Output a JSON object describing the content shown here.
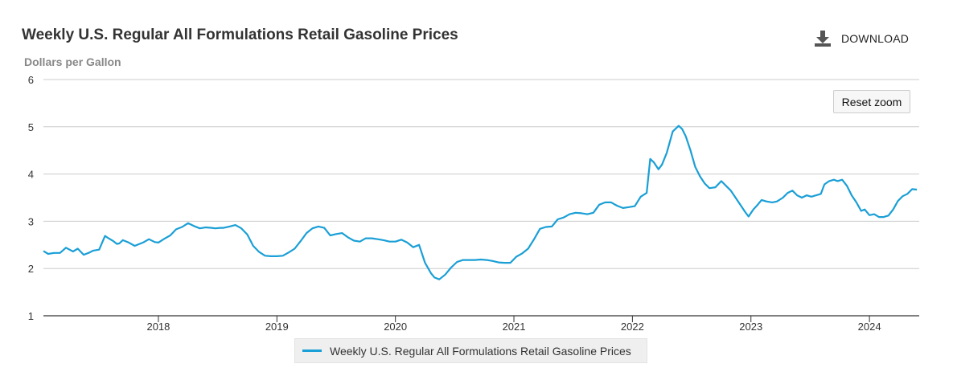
{
  "chart_data": {
    "type": "line",
    "title": "Weekly U.S. Regular All Formulations Retail Gasoline Prices",
    "ylabel": "Dollars per Gallon",
    "xlabel": "",
    "ylim": [
      1,
      6
    ],
    "yticks": [
      1,
      2,
      3,
      4,
      5,
      6
    ],
    "xlim": [
      2017.03,
      2024.42
    ],
    "xticks": [
      {
        "value": 2018,
        "label": "2018"
      },
      {
        "value": 2019,
        "label": "2019"
      },
      {
        "value": 2020,
        "label": "2020"
      },
      {
        "value": 2021,
        "label": "2021"
      },
      {
        "value": 2022,
        "label": "2022"
      },
      {
        "value": 2023,
        "label": "2023"
      },
      {
        "value": 2024,
        "label": "2024"
      }
    ],
    "grid": true,
    "legend_position": "bottom-center",
    "series": [
      {
        "name": "Weekly U.S. Regular All Formulations Retail Gasoline Prices",
        "color": "#1a9fd6",
        "x": [
          2017.03,
          2017.07,
          2017.12,
          2017.17,
          2017.22,
          2017.28,
          2017.32,
          2017.37,
          2017.42,
          2017.45,
          2017.5,
          2017.55,
          2017.58,
          2017.62,
          2017.65,
          2017.67,
          2017.7,
          2017.75,
          2017.8,
          2017.84,
          2017.87,
          2017.92,
          2017.97,
          2018.0,
          2018.05,
          2018.1,
          2018.15,
          2018.2,
          2018.25,
          2018.3,
          2018.35,
          2018.4,
          2018.45,
          2018.48,
          2018.52,
          2018.55,
          2018.6,
          2018.65,
          2018.7,
          2018.75,
          2018.8,
          2018.85,
          2018.9,
          2018.95,
          2019.0,
          2019.05,
          2019.1,
          2019.15,
          2019.2,
          2019.25,
          2019.3,
          2019.35,
          2019.4,
          2019.45,
          2019.5,
          2019.55,
          2019.6,
          2019.65,
          2019.7,
          2019.75,
          2019.8,
          2019.85,
          2019.9,
          2019.95,
          2020.0,
          2020.05,
          2020.1,
          2020.15,
          2020.2,
          2020.25,
          2020.3,
          2020.33,
          2020.37,
          2020.42,
          2020.47,
          2020.52,
          2020.57,
          2020.62,
          2020.67,
          2020.72,
          2020.77,
          2020.82,
          2020.87,
          2020.92,
          2020.97,
          2021.02,
          2021.07,
          2021.12,
          2021.17,
          2021.22,
          2021.27,
          2021.32,
          2021.37,
          2021.42,
          2021.47,
          2021.52,
          2021.57,
          2021.62,
          2021.67,
          2021.72,
          2021.77,
          2021.82,
          2021.87,
          2021.92,
          2021.97,
          2022.02,
          2022.07,
          2022.12,
          2022.15,
          2022.18,
          2022.22,
          2022.25,
          2022.29,
          2022.34,
          2022.39,
          2022.42,
          2022.45,
          2022.49,
          2022.53,
          2022.57,
          2022.61,
          2022.65,
          2022.7,
          2022.75,
          2022.79,
          2022.83,
          2022.87,
          2022.91,
          2022.95,
          2022.98,
          2023.02,
          2023.05,
          2023.09,
          2023.13,
          2023.18,
          2023.22,
          2023.27,
          2023.31,
          2023.35,
          2023.39,
          2023.43,
          2023.47,
          2023.51,
          2023.55,
          2023.59,
          2023.62,
          2023.66,
          2023.7,
          2023.73,
          2023.77,
          2023.81,
          2023.85,
          2023.89,
          2023.93,
          2023.96,
          2024.0,
          2024.04,
          2024.08,
          2024.12,
          2024.16,
          2024.2,
          2024.24,
          2024.28,
          2024.32,
          2024.36,
          2024.4
        ],
        "values": [
          2.37,
          2.31,
          2.33,
          2.33,
          2.44,
          2.36,
          2.42,
          2.29,
          2.34,
          2.38,
          2.4,
          2.69,
          2.64,
          2.58,
          2.52,
          2.53,
          2.6,
          2.55,
          2.48,
          2.52,
          2.55,
          2.62,
          2.56,
          2.55,
          2.63,
          2.7,
          2.83,
          2.88,
          2.96,
          2.9,
          2.85,
          2.87,
          2.86,
          2.85,
          2.86,
          2.86,
          2.89,
          2.92,
          2.85,
          2.72,
          2.48,
          2.35,
          2.27,
          2.26,
          2.26,
          2.27,
          2.34,
          2.42,
          2.58,
          2.75,
          2.85,
          2.89,
          2.86,
          2.7,
          2.73,
          2.75,
          2.66,
          2.59,
          2.57,
          2.64,
          2.64,
          2.62,
          2.6,
          2.57,
          2.57,
          2.61,
          2.55,
          2.45,
          2.5,
          2.12,
          1.9,
          1.81,
          1.77,
          1.87,
          2.02,
          2.14,
          2.18,
          2.18,
          2.18,
          2.19,
          2.18,
          2.16,
          2.13,
          2.12,
          2.12,
          2.25,
          2.32,
          2.42,
          2.62,
          2.84,
          2.88,
          2.89,
          3.04,
          3.08,
          3.15,
          3.18,
          3.17,
          3.15,
          3.18,
          3.35,
          3.4,
          3.4,
          3.33,
          3.28,
          3.3,
          3.32,
          3.52,
          3.6,
          4.32,
          4.25,
          4.1,
          4.2,
          4.45,
          4.9,
          5.02,
          4.95,
          4.8,
          4.5,
          4.15,
          3.95,
          3.8,
          3.7,
          3.72,
          3.85,
          3.75,
          3.65,
          3.5,
          3.35,
          3.2,
          3.1,
          3.25,
          3.33,
          3.45,
          3.42,
          3.4,
          3.42,
          3.5,
          3.6,
          3.65,
          3.55,
          3.5,
          3.55,
          3.52,
          3.55,
          3.58,
          3.78,
          3.85,
          3.88,
          3.85,
          3.88,
          3.75,
          3.55,
          3.4,
          3.22,
          3.25,
          3.13,
          3.15,
          3.09,
          3.09,
          3.12,
          3.25,
          3.43,
          3.53,
          3.58,
          3.68,
          3.67
        ]
      }
    ]
  },
  "toolbar": {
    "download_label": "DOWNLOAD",
    "download_icon": "download-icon",
    "reset_zoom_label": "Reset zoom"
  }
}
